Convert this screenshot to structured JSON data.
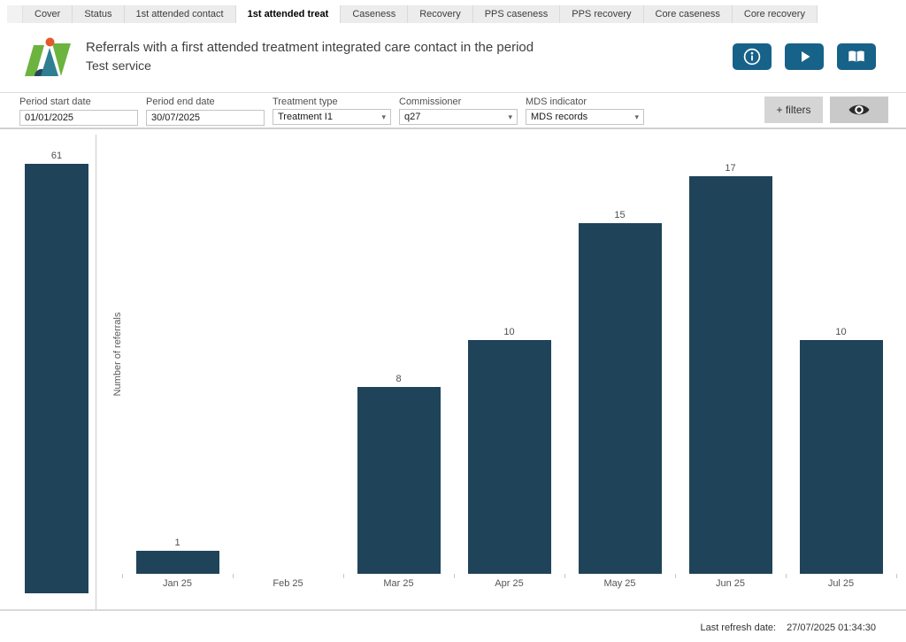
{
  "tabs": [
    {
      "label": "Cover",
      "active": false
    },
    {
      "label": "Status",
      "active": false
    },
    {
      "label": "1st attended contact",
      "active": false
    },
    {
      "label": "1st attended treat",
      "active": true
    },
    {
      "label": "Caseness",
      "active": false
    },
    {
      "label": "Recovery",
      "active": false
    },
    {
      "label": "PPS caseness",
      "active": false
    },
    {
      "label": "PPS recovery",
      "active": false
    },
    {
      "label": "Core caseness",
      "active": false
    },
    {
      "label": "Core recovery",
      "active": false
    }
  ],
  "header": {
    "title": "Referrals with a first attended treatment integrated care contact in the period",
    "subtitle": "Test service",
    "actions": [
      {
        "name": "info-button",
        "icon": "info-icon"
      },
      {
        "name": "play-button",
        "icon": "play-icon"
      },
      {
        "name": "guide-button",
        "icon": "open-book-icon"
      }
    ],
    "button_color": "#176289"
  },
  "filters": {
    "fields": [
      {
        "label": "Period start date",
        "value": "01/01/2025",
        "type": "text"
      },
      {
        "label": "Period end date",
        "value": "30/07/2025",
        "type": "text"
      },
      {
        "label": "Treatment type",
        "value": "Treatment I1",
        "type": "dropdown"
      },
      {
        "label": "Commissioner",
        "value": "q27",
        "type": "dropdown"
      },
      {
        "label": "MDS indicator",
        "value": "MDS records",
        "type": "dropdown"
      }
    ],
    "caret_glyph": "▾",
    "add_filters_label": "+ filters",
    "visibility_icon": "eye-icon"
  },
  "chart_data": {
    "type": "bar",
    "title": "",
    "xlabel": "",
    "ylabel": "Number of referrals",
    "categories": [
      "Jan 25",
      "Feb 25",
      "Mar 25",
      "Apr 25",
      "May 25",
      "Jun 25",
      "Jul 25"
    ],
    "values": [
      1,
      0,
      8,
      10,
      15,
      17,
      10
    ],
    "total_bar": {
      "value": 61,
      "note": "overall total bar drawn left of the y-axis on its own scale"
    },
    "data_labels": true,
    "grid": false,
    "legend": false,
    "bar_color": "#1f4459"
  },
  "footer": {
    "refresh_label": "Last refresh date:",
    "refresh_value": "27/07/2025 01:34:30"
  },
  "colors": {
    "accent_blue": "#176289",
    "bar": "#1f4459",
    "tab_bg": "#ececec",
    "divider": "#d9d9d9",
    "logo_green": "#6db33f",
    "logo_teal": "#2f7e92",
    "logo_orange": "#e4582b",
    "logo_navy": "#24455a"
  }
}
